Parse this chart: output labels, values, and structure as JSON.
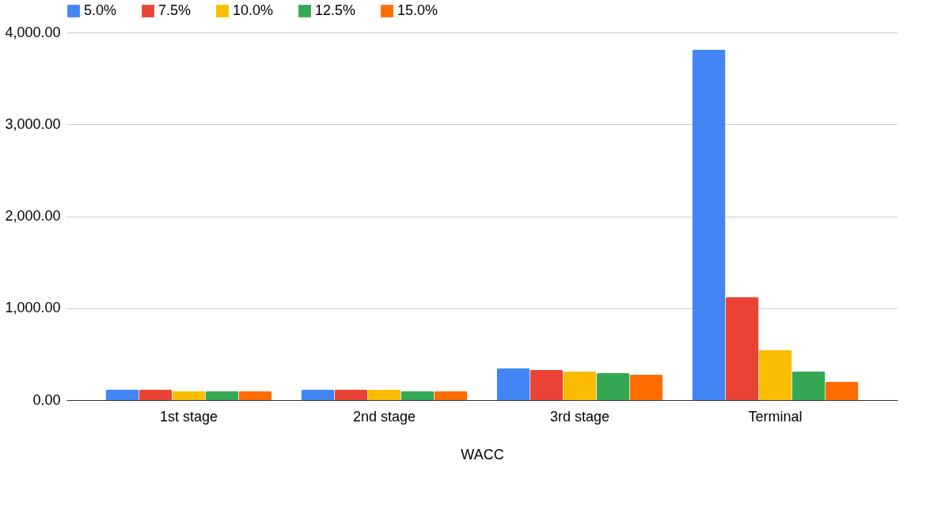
{
  "chart_data": {
    "type": "bar",
    "xlabel": "WACC",
    "categories": [
      "1st stage",
      "2nd stage",
      "3rd stage",
      "Terminal"
    ],
    "series": [
      {
        "name": "5.0%",
        "color": "#4285f4",
        "values": [
          112,
          112,
          344,
          3811
        ]
      },
      {
        "name": "7.5%",
        "color": "#ea4335",
        "values": [
          112,
          112,
          327,
          1118
        ]
      },
      {
        "name": "10.0%",
        "color": "#fbbc04",
        "values": [
          95,
          112,
          310,
          542
        ]
      },
      {
        "name": "12.5%",
        "color": "#34a853",
        "values": [
          95,
          95,
          292,
          310
        ]
      },
      {
        "name": "15.0%",
        "color": "#ff6d01",
        "values": [
          95,
          95,
          275,
          198
        ]
      }
    ],
    "ylim": [
      0,
      4000
    ],
    "yticks": [
      {
        "value": 0,
        "label": "0.00"
      },
      {
        "value": 1000,
        "label": "1,000.00"
      },
      {
        "value": 2000,
        "label": "2,000.00"
      },
      {
        "value": 3000,
        "label": "3,000.00"
      },
      {
        "value": 4000,
        "label": "4,000.00"
      }
    ],
    "grid": "y",
    "legend": "top"
  }
}
